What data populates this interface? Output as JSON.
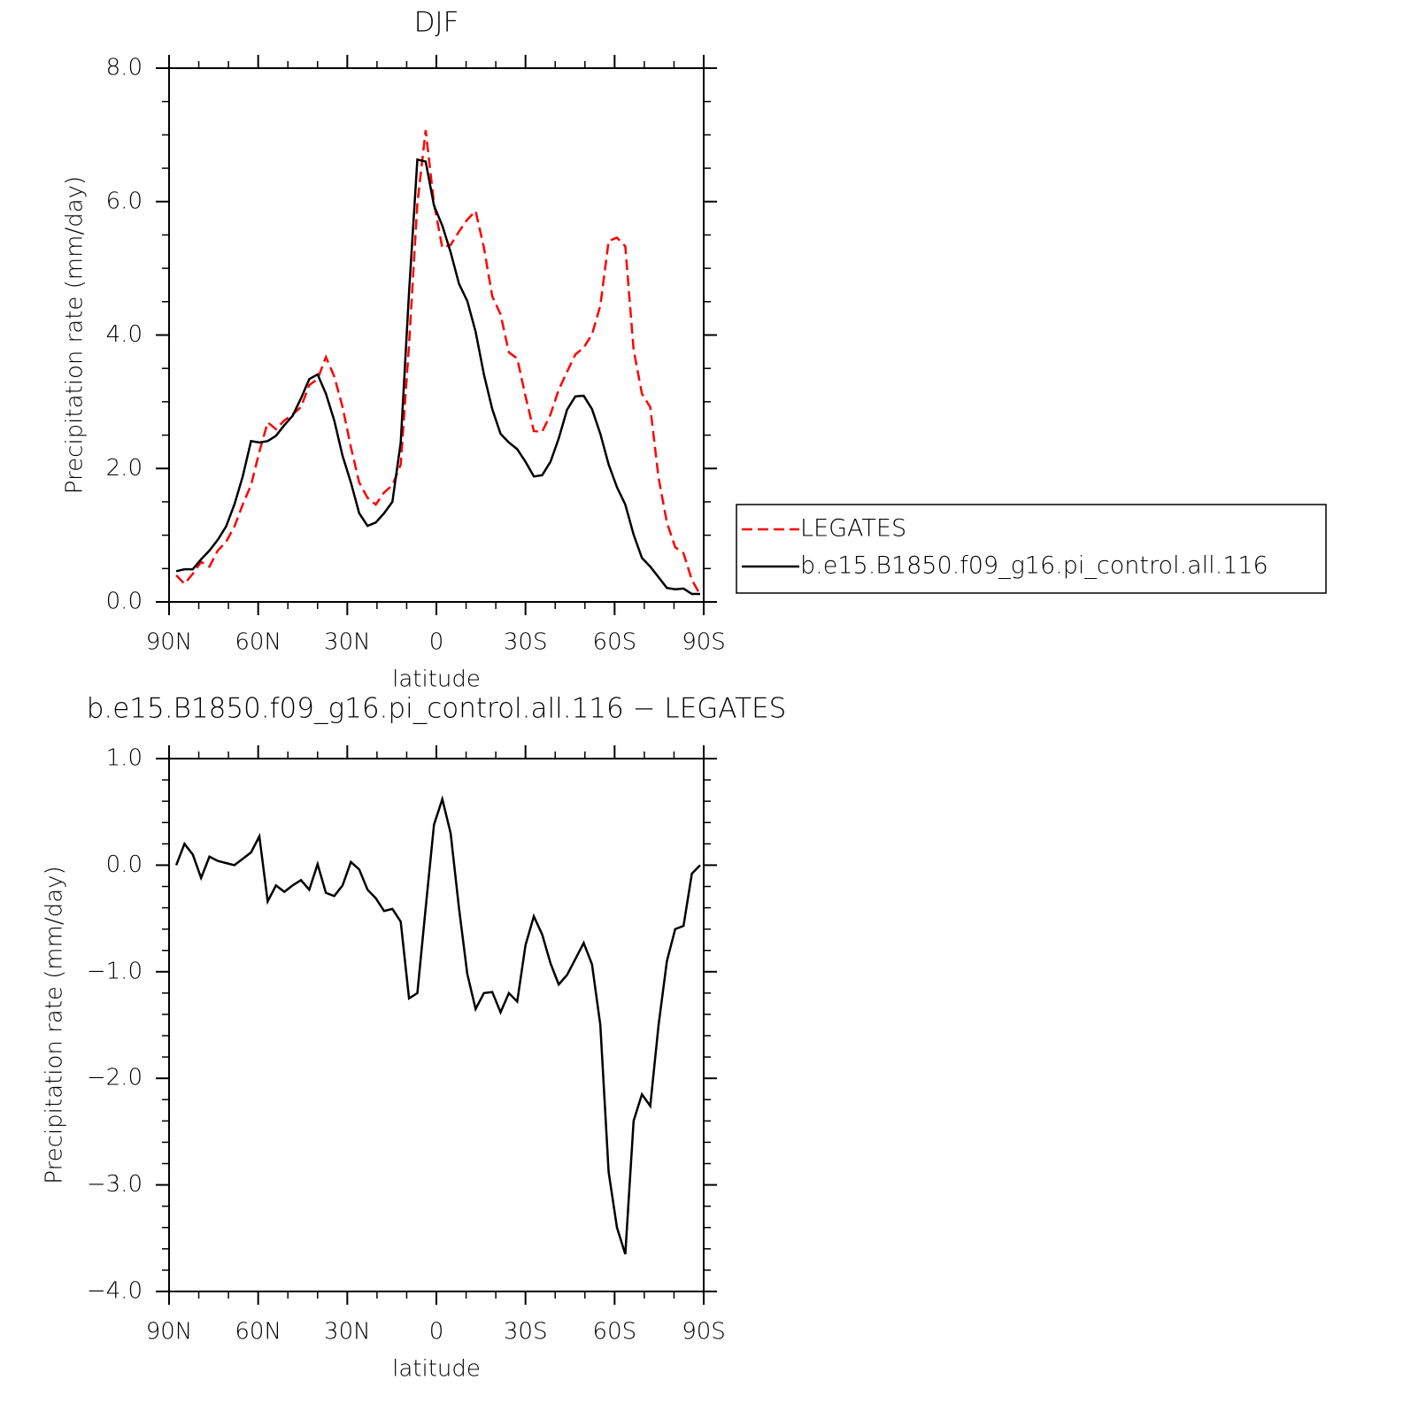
{
  "chart_data": [
    {
      "type": "line",
      "title": "DJF",
      "xlabel": "latitude",
      "ylabel": "Precipitation rate (mm/day)",
      "x": [
        87.6,
        84.8,
        82.0,
        79.2,
        76.4,
        73.6,
        70.8,
        68.0,
        65.2,
        62.4,
        59.6,
        56.8,
        54.0,
        51.2,
        48.4,
        45.6,
        42.8,
        40.0,
        37.2,
        34.4,
        31.6,
        28.8,
        26.0,
        23.2,
        20.4,
        17.6,
        14.8,
        12.0,
        9.2,
        6.4,
        3.6,
        0.8,
        -2.0,
        -4.8,
        -7.6,
        -10.4,
        -13.2,
        -16.0,
        -18.8,
        -21.6,
        -24.4,
        -27.2,
        -30.0,
        -32.8,
        -35.6,
        -38.4,
        -41.2,
        -44.0,
        -46.8,
        -49.6,
        -52.4,
        -55.2,
        -58.0,
        -60.8,
        -63.6,
        -66.4,
        -69.2,
        -72.0,
        -74.8,
        -77.6,
        -80.4,
        -83.2,
        -86.0,
        -88.8
      ],
      "series": [
        {
          "name": "LEGATES",
          "color": "#ff0000",
          "linestyle": "dashed",
          "values": [
            0.4,
            0.27,
            0.42,
            0.6,
            0.53,
            0.77,
            0.9,
            1.13,
            1.46,
            1.75,
            2.25,
            2.69,
            2.59,
            2.72,
            2.81,
            2.92,
            3.25,
            3.34,
            3.67,
            3.38,
            2.92,
            2.32,
            1.79,
            1.56,
            1.46,
            1.64,
            1.75,
            2.06,
            3.85,
            5.97,
            7.07,
            5.97,
            5.31,
            5.35,
            5.55,
            5.73,
            5.86,
            5.31,
            4.58,
            4.31,
            3.74,
            3.65,
            3.08,
            2.56,
            2.55,
            2.81,
            3.18,
            3.45,
            3.71,
            3.81,
            4.01,
            4.44,
            5.41,
            5.46,
            5.33,
            3.78,
            3.12,
            2.92,
            1.86,
            1.19,
            0.82,
            0.73,
            0.33,
            0.11
          ]
        },
        {
          "name": "b.e15.B1850.f09_g16.pi_control.all.116",
          "color": "#000000",
          "linestyle": "solid",
          "values": [
            0.46,
            0.49,
            0.49,
            0.64,
            0.77,
            0.93,
            1.13,
            1.46,
            1.88,
            2.41,
            2.39,
            2.41,
            2.49,
            2.65,
            2.79,
            3.05,
            3.34,
            3.41,
            3.12,
            2.72,
            2.19,
            1.79,
            1.33,
            1.14,
            1.19,
            1.33,
            1.5,
            2.39,
            4.64,
            6.63,
            6.6,
            5.94,
            5.64,
            5.24,
            4.77,
            4.51,
            4.05,
            3.41,
            2.89,
            2.52,
            2.39,
            2.29,
            2.1,
            1.88,
            1.9,
            2.1,
            2.45,
            2.88,
            3.08,
            3.09,
            2.89,
            2.52,
            2.06,
            1.72,
            1.46,
            1.01,
            0.66,
            0.53,
            0.37,
            0.21,
            0.19,
            0.2,
            0.12,
            0.12
          ]
        }
      ],
      "xlim": [
        90,
        -90
      ],
      "xticks": [
        {
          "value": 90,
          "label": "90N"
        },
        {
          "value": 60,
          "label": "60N"
        },
        {
          "value": 30,
          "label": "30N"
        },
        0,
        {
          "value": -30,
          "label": "30S"
        },
        {
          "value": -60,
          "label": "60S"
        },
        {
          "value": -90,
          "label": "90S"
        }
      ],
      "xminorticks": [
        80,
        70,
        50,
        40,
        20,
        10,
        -10,
        -20,
        -40,
        -50,
        -70,
        -80
      ],
      "ylim": [
        0,
        8
      ],
      "yticks": [
        {
          "value": 0,
          "label": "0.0"
        },
        {
          "value": 2,
          "label": "2.0"
        },
        {
          "value": 4,
          "label": "4.0"
        },
        {
          "value": 6,
          "label": "6.0"
        },
        {
          "value": 8,
          "label": "8.0"
        }
      ],
      "yminorticks": [
        0.5,
        1,
        1.5,
        2.5,
        3,
        3.5,
        4.5,
        5,
        5.5,
        6.5,
        7,
        7.5
      ],
      "legend": "outside-right"
    },
    {
      "type": "line",
      "title": "b.e15.B1850.f09_g16.pi_control.all.116 − LEGATES",
      "xlabel": "latitude",
      "ylabel": "Precipitation rate (mm/day)",
      "x": [
        87.6,
        84.8,
        82.0,
        79.2,
        76.4,
        73.6,
        70.8,
        68.0,
        65.2,
        62.4,
        59.6,
        56.8,
        54.0,
        51.2,
        48.4,
        45.6,
        42.8,
        40.0,
        37.2,
        34.4,
        31.6,
        28.8,
        26.0,
        23.2,
        20.4,
        17.6,
        14.8,
        12.0,
        9.2,
        6.4,
        3.6,
        0.8,
        -2.0,
        -4.8,
        -7.6,
        -10.4,
        -13.2,
        -16.0,
        -18.8,
        -21.6,
        -24.4,
        -27.2,
        -30.0,
        -32.8,
        -35.6,
        -38.4,
        -41.2,
        -44.0,
        -46.8,
        -49.6,
        -52.4,
        -55.2,
        -58.0,
        -60.8,
        -63.6,
        -66.4,
        -69.2,
        -72.0,
        -74.8,
        -77.6,
        -80.4,
        -83.2,
        -86.0,
        -88.8
      ],
      "color": "#000000",
      "values": [
        0.0,
        0.2,
        0.1,
        -0.12,
        0.08,
        0.04,
        0.02,
        0.0,
        0.06,
        0.12,
        0.27,
        -0.34,
        -0.19,
        -0.25,
        -0.19,
        -0.14,
        -0.23,
        0.01,
        -0.26,
        -0.29,
        -0.19,
        0.03,
        -0.04,
        -0.23,
        -0.31,
        -0.43,
        -0.41,
        -0.53,
        -1.25,
        -1.2,
        -0.4,
        0.38,
        0.62,
        0.3,
        -0.4,
        -1.02,
        -1.35,
        -1.2,
        -1.19,
        -1.38,
        -1.2,
        -1.28,
        -0.75,
        -0.48,
        -0.65,
        -0.92,
        -1.12,
        -1.03,
        -0.88,
        -0.73,
        -0.93,
        -1.5,
        -2.88,
        -3.4,
        -3.65,
        -2.4,
        -2.15,
        -2.26,
        -1.5,
        -0.9,
        -0.6,
        -0.57,
        -0.08,
        0.0
      ],
      "xlim": [
        90,
        -90
      ],
      "xticks": [
        {
          "value": 90,
          "label": "90N"
        },
        {
          "value": 60,
          "label": "60N"
        },
        {
          "value": 30,
          "label": "30N"
        },
        0,
        {
          "value": -30,
          "label": "30S"
        },
        {
          "value": -60,
          "label": "60S"
        },
        {
          "value": -90,
          "label": "90S"
        }
      ],
      "xminorticks": [
        80,
        70,
        50,
        40,
        20,
        10,
        -10,
        -20,
        -40,
        -50,
        -70,
        -80
      ],
      "ylim": [
        -4,
        1
      ],
      "yticks": [
        {
          "value": 1,
          "label": "1.0"
        },
        {
          "value": 0,
          "label": "0.0"
        },
        {
          "value": -1,
          "label": "−1.0"
        },
        {
          "value": -2,
          "label": "−2.0"
        },
        {
          "value": -3,
          "label": "−3.0"
        },
        {
          "value": -4,
          "label": "−4.0"
        }
      ],
      "yminorticks": [
        0.8,
        0.6,
        0.4,
        0.2,
        -0.2,
        -0.4,
        -0.6,
        -0.8,
        -1.2,
        -1.4,
        -1.6,
        -1.8,
        -2.2,
        -2.4,
        -2.6,
        -2.8,
        -3.2,
        -3.4,
        -3.6,
        -3.8
      ]
    }
  ]
}
